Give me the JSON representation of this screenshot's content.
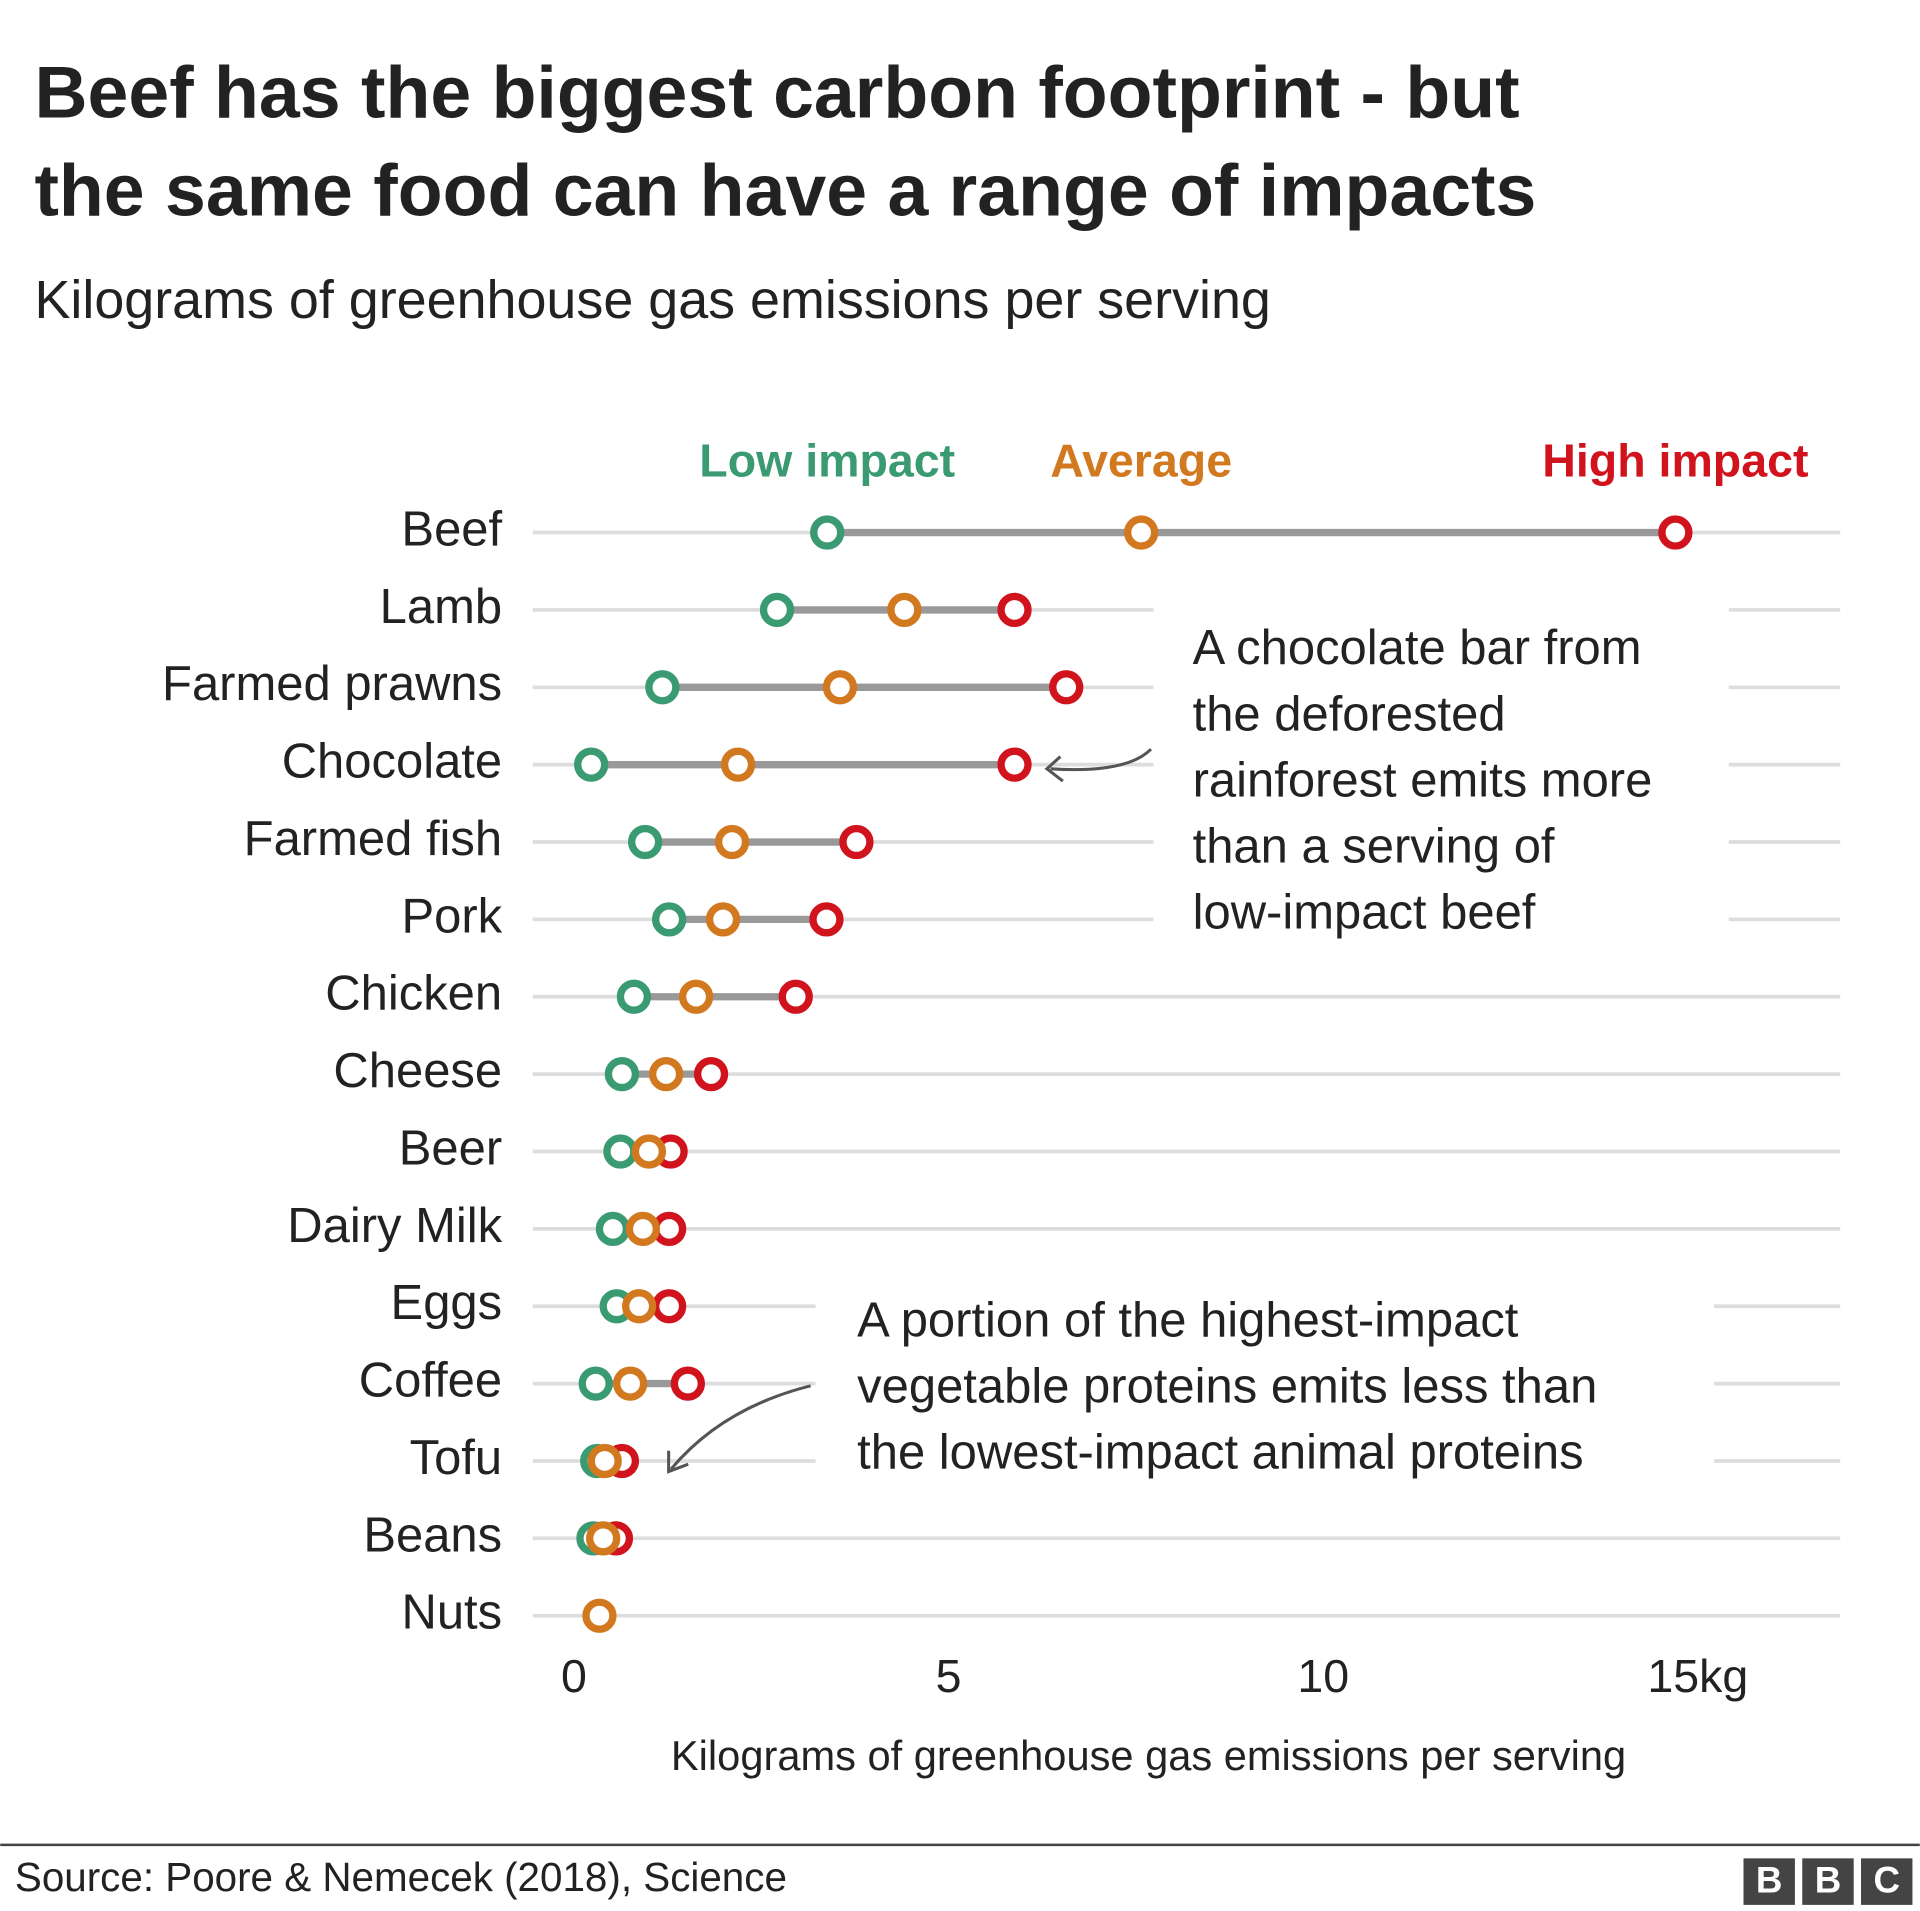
{
  "chart_data": {
    "type": "dumbbell",
    "title": [
      "Beef has the biggest carbon footprint - but",
      "the same food can have a range of impacts"
    ],
    "subtitle": "Kilograms of greenhouse gas emissions per serving",
    "x_label": "Kilograms of greenhouse gas emissions per serving",
    "source": "Source: Poore & Nemecek (2018), Science",
    "brand": [
      "B",
      "B",
      "C"
    ],
    "categories": [
      "Beef",
      "Lamb",
      "Farmed prawns",
      "Chocolate",
      "Farmed fish",
      "Pork",
      "Chicken",
      "Cheese",
      "Beer",
      "Dairy Milk",
      "Eggs",
      "Coffee",
      "Tofu",
      "Beans",
      "Nuts"
    ],
    "series": [
      {
        "name": "Low impact",
        "color": "#3a9a72",
        "values": [
          3.38,
          2.71,
          1.18,
          0.23,
          0.95,
          1.27,
          0.8,
          0.64,
          0.62,
          0.52,
          0.57,
          0.29,
          0.31,
          0.26,
          null
        ]
      },
      {
        "name": "Average",
        "color": "#d2781f",
        "values": [
          7.57,
          4.41,
          3.55,
          2.19,
          2.11,
          1.99,
          1.63,
          1.23,
          1.0,
          0.92,
          0.87,
          0.75,
          0.41,
          0.39,
          0.34
        ]
      },
      {
        "name": "High impact",
        "color": "#d0131c",
        "values": [
          14.7,
          5.88,
          6.57,
          5.88,
          3.77,
          3.37,
          2.96,
          1.83,
          1.29,
          1.27,
          1.27,
          1.52,
          0.64,
          0.56,
          null
        ]
      }
    ],
    "xlim": [
      -0.55,
      16.9
    ],
    "xticks": [
      0,
      5,
      10,
      {
        "value": 15,
        "label": "15kg"
      }
    ],
    "annotations": [
      {
        "lines": [
          "A chocolate bar from",
          "the deforested",
          "rainforest emits more",
          "than a serving of",
          "low-impact beef"
        ]
      },
      {
        "lines": [
          "A portion of the highest-impact",
          "vegetable proteins emits less than",
          "the lowest-impact animal proteins"
        ]
      }
    ]
  }
}
